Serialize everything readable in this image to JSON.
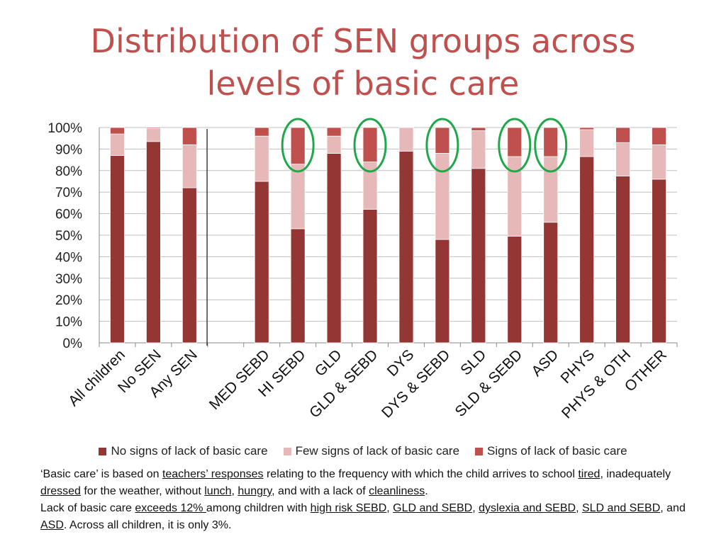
{
  "title_line1": "Distribution of SEN groups across",
  "title_line2": "levels of basic care",
  "colors": {
    "none": "#943634",
    "few": "#e6b9b8",
    "signs": "#c0504d",
    "highlight": "#1ea84a",
    "grid": "#bfbfbf",
    "title": "#c0504d"
  },
  "chart_data": {
    "type": "bar",
    "stacked": true,
    "categories": [
      "All children",
      "No SEN",
      "Any SEN",
      "",
      "MED SEBD",
      "HI SEBD",
      "GLD",
      "GLD & SEBD",
      "DYS",
      "DYS & SEBD",
      "SLD",
      "SLD & SEBD",
      "ASD",
      "PHYS",
      "PHYS & OTH",
      "OTHER"
    ],
    "series": [
      {
        "name": "No signs of lack of basic care",
        "values": [
          87,
          93.5,
          72,
          null,
          75,
          53,
          88,
          62,
          89,
          48,
          81,
          49.5,
          56,
          86.5,
          77.5,
          76
        ]
      },
      {
        "name": "Few signs of lack of basic care",
        "values": [
          10,
          6,
          20,
          null,
          21,
          30,
          8,
          22,
          11,
          40,
          17.5,
          37,
          30.5,
          12.5,
          15.5,
          16
        ]
      },
      {
        "name": "Signs of lack of basic care",
        "values": [
          3,
          0.5,
          8,
          null,
          4,
          17,
          4,
          16,
          0,
          12,
          1.5,
          13.5,
          13.5,
          1,
          7,
          8
        ]
      }
    ],
    "ylim": [
      0,
      100
    ],
    "yticks": [
      "0%",
      "10%",
      "20%",
      "30%",
      "40%",
      "50%",
      "60%",
      "70%",
      "80%",
      "90%",
      "100%"
    ],
    "grid": true,
    "legend": "bottom",
    "highlighted": [
      "HI SEBD",
      "GLD & SEBD",
      "DYS & SEBD",
      "SLD & SEBD",
      "ASD"
    ]
  },
  "notes": {
    "p1": [
      {
        "t": "‘Basic care’ is based on "
      },
      {
        "t": "teachers’ responses",
        "u": true
      },
      {
        "t": " relating to the frequency with which the child arrives to school "
      },
      {
        "t": "tired",
        "u": true
      },
      {
        "t": ", inadequately "
      },
      {
        "t": "dressed",
        "u": true
      },
      {
        "t": " for the weather, without "
      },
      {
        "t": "lunch",
        "u": true
      },
      {
        "t": ", "
      },
      {
        "t": "hungry",
        "u": true
      },
      {
        "t": ", and with a lack of "
      },
      {
        "t": "cleanliness",
        "u": true
      },
      {
        "t": "."
      }
    ],
    "p2": [
      {
        "t": "Lack of basic care "
      },
      {
        "t": "exceeds 12% ",
        "u": true
      },
      {
        "t": "among children with "
      },
      {
        "t": "high risk SEBD",
        "u": true
      },
      {
        "t": ", "
      },
      {
        "t": "GLD and SEBD",
        "u": true
      },
      {
        "t": ", "
      },
      {
        "t": "dyslexia and SEBD",
        "u": true
      },
      {
        "t": ", "
      },
      {
        "t": "SLD and SEBD",
        "u": true
      },
      {
        "t": ", and "
      },
      {
        "t": "ASD",
        "u": true
      },
      {
        "t": ". Across all children, it is only 3%."
      }
    ]
  }
}
